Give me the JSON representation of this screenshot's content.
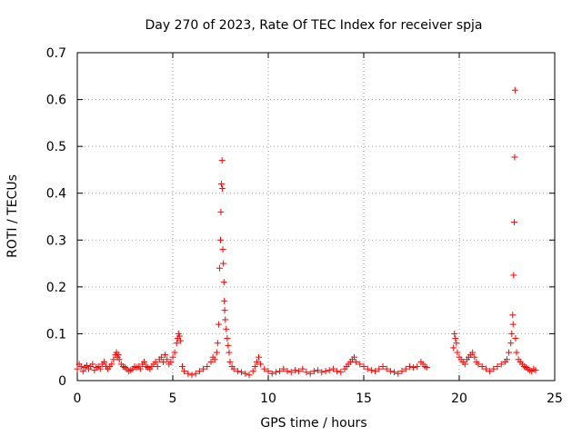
{
  "chart_data": {
    "type": "scatter",
    "title": "Day 270 of 2023, Rate Of TEC Index for receiver spja",
    "xlabel": "GPS time / hours",
    "ylabel": "ROTI / TECUs",
    "xlim": [
      0,
      25
    ],
    "ylim": [
      0,
      0.7
    ],
    "xticks": [
      0,
      5,
      10,
      15,
      20,
      25
    ],
    "yticks": [
      0,
      0.1,
      0.2,
      0.3,
      0.4,
      0.5,
      0.6,
      0.7
    ],
    "grid": true,
    "marker": "plus",
    "color": "#ff0000",
    "series": [
      {
        "x": [
          0.0,
          0.1,
          0.2,
          0.3,
          0.4,
          0.5,
          0.6,
          0.7,
          0.8,
          0.9,
          1.0,
          1.1,
          1.2,
          1.3,
          1.4,
          1.5,
          1.6,
          1.7,
          1.8,
          1.9,
          2.0,
          2.05,
          2.1,
          2.15,
          2.2,
          2.3,
          2.4,
          2.5,
          2.6,
          2.7,
          2.8,
          2.9,
          3.0,
          3.1,
          3.2,
          3.3,
          3.4,
          3.5,
          3.6,
          3.7,
          3.8,
          3.9,
          4.0,
          4.1,
          4.2,
          4.3,
          4.4,
          4.5,
          4.6,
          4.7,
          4.8,
          4.9,
          5.0,
          5.1,
          5.2,
          5.25,
          5.3,
          5.35,
          5.4,
          5.5,
          5.6,
          5.8,
          6.0,
          6.2,
          6.4,
          6.6,
          6.8,
          7.0,
          7.1,
          7.2,
          7.3,
          7.35,
          7.4,
          7.45,
          7.5,
          7.52,
          7.55,
          7.58,
          7.6,
          7.62,
          7.65,
          7.68,
          7.7,
          7.72,
          7.75,
          7.8,
          7.85,
          7.9,
          7.95,
          8.0,
          8.1,
          8.2,
          8.4,
          8.6,
          8.8,
          9.0,
          9.2,
          9.3,
          9.4,
          9.5,
          9.6,
          9.8,
          10.0,
          10.2,
          10.4,
          10.6,
          10.8,
          11.0,
          11.2,
          11.4,
          11.6,
          11.8,
          12.0,
          12.2,
          12.4,
          12.6,
          12.8,
          13.0,
          13.2,
          13.4,
          13.6,
          13.8,
          14.0,
          14.1,
          14.2,
          14.3,
          14.4,
          14.5,
          14.6,
          14.8,
          15.0,
          15.2,
          15.4,
          15.6,
          15.8,
          16.0,
          16.2,
          16.4,
          16.6,
          16.8,
          17.0,
          17.2,
          17.4,
          17.6,
          17.8,
          18.0,
          18.1,
          18.2,
          18.3,
          19.7,
          19.75,
          19.8,
          19.85,
          19.9,
          20.0,
          20.1,
          20.2,
          20.3,
          20.4,
          20.5,
          20.6,
          20.7,
          20.8,
          20.9,
          21.0,
          21.2,
          21.4,
          21.6,
          21.8,
          22.0,
          22.2,
          22.4,
          22.5,
          22.6,
          22.7,
          22.75,
          22.8,
          22.82,
          22.85,
          22.88,
          22.9,
          22.92,
          22.95,
          23.0,
          23.1,
          23.2,
          23.3,
          23.4,
          23.5,
          23.6,
          23.7,
          23.8,
          23.9,
          24.0
        ],
        "y": [
          0.025,
          0.035,
          0.03,
          0.02,
          0.028,
          0.032,
          0.025,
          0.03,
          0.035,
          0.022,
          0.028,
          0.03,
          0.025,
          0.035,
          0.04,
          0.03,
          0.025,
          0.03,
          0.035,
          0.045,
          0.055,
          0.06,
          0.05,
          0.055,
          0.045,
          0.035,
          0.03,
          0.028,
          0.025,
          0.02,
          0.022,
          0.025,
          0.03,
          0.028,
          0.03,
          0.025,
          0.035,
          0.04,
          0.03,
          0.028,
          0.025,
          0.03,
          0.035,
          0.04,
          0.03,
          0.045,
          0.05,
          0.04,
          0.055,
          0.045,
          0.035,
          0.04,
          0.05,
          0.06,
          0.08,
          0.09,
          0.1,
          0.095,
          0.085,
          0.03,
          0.02,
          0.015,
          0.012,
          0.015,
          0.02,
          0.025,
          0.03,
          0.04,
          0.05,
          0.045,
          0.06,
          0.08,
          0.12,
          0.24,
          0.3,
          0.36,
          0.42,
          0.47,
          0.41,
          0.28,
          0.25,
          0.21,
          0.17,
          0.15,
          0.13,
          0.11,
          0.09,
          0.075,
          0.06,
          0.04,
          0.03,
          0.025,
          0.02,
          0.018,
          0.015,
          0.012,
          0.02,
          0.03,
          0.04,
          0.05,
          0.035,
          0.025,
          0.02,
          0.015,
          0.018,
          0.02,
          0.025,
          0.02,
          0.018,
          0.022,
          0.02,
          0.025,
          0.018,
          0.015,
          0.02,
          0.022,
          0.018,
          0.02,
          0.022,
          0.025,
          0.02,
          0.018,
          0.025,
          0.03,
          0.035,
          0.04,
          0.045,
          0.05,
          0.04,
          0.035,
          0.03,
          0.025,
          0.022,
          0.02,
          0.025,
          0.03,
          0.025,
          0.02,
          0.018,
          0.015,
          0.02,
          0.025,
          0.03,
          0.028,
          0.03,
          0.04,
          0.035,
          0.03,
          0.028,
          0.07,
          0.1,
          0.09,
          0.08,
          0.06,
          0.05,
          0.045,
          0.04,
          0.035,
          0.045,
          0.05,
          0.055,
          0.06,
          0.05,
          0.04,
          0.035,
          0.03,
          0.025,
          0.02,
          0.025,
          0.03,
          0.035,
          0.04,
          0.045,
          0.06,
          0.08,
          0.1,
          0.14,
          0.12,
          0.225,
          0.338,
          0.477,
          0.62,
          0.09,
          0.06,
          0.045,
          0.04,
          0.035,
          0.03,
          0.028,
          0.025,
          0.022,
          0.02,
          0.025,
          0.022
        ]
      }
    ]
  }
}
